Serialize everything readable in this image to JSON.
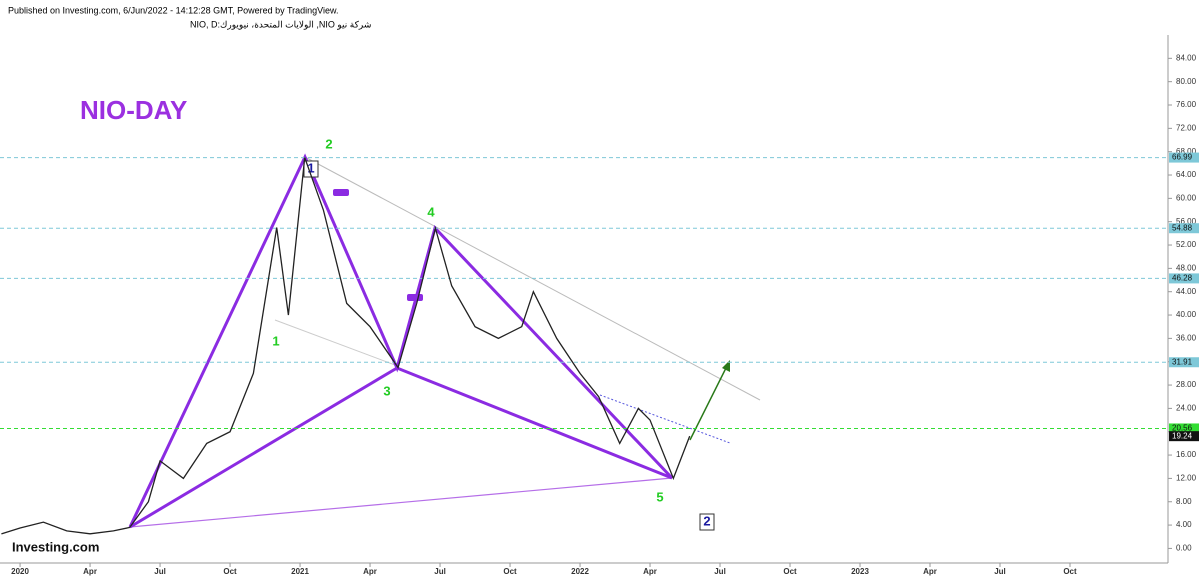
{
  "header": {
    "published": "Published on Investing.com, 6/Jun/2022 - 14:12:28 GMT, Powered by TradingView.",
    "symbol": "شركة نيو NIO, الولايات المتحدة، نيويورك:NIO, D"
  },
  "chart_data": {
    "type": "line",
    "title": "NIO-DAY",
    "watermark": "Investing.com",
    "xlim": [
      -0.86,
      49.2
    ],
    "xticks": [
      {
        "value": 0,
        "label": "2020"
      },
      {
        "value": 3,
        "label": "Apr"
      },
      {
        "value": 6,
        "label": "Jul"
      },
      {
        "value": 9,
        "label": "Oct"
      },
      {
        "value": 12,
        "label": "2021"
      },
      {
        "value": 15,
        "label": "Apr"
      },
      {
        "value": 18,
        "label": "Jul"
      },
      {
        "value": 21,
        "label": "Oct"
      },
      {
        "value": 24,
        "label": "2022"
      },
      {
        "value": 27,
        "label": "Apr"
      },
      {
        "value": 30,
        "label": "Jul"
      },
      {
        "value": 33,
        "label": "Oct"
      },
      {
        "value": 36,
        "label": "2023"
      },
      {
        "value": 39,
        "label": "Apr"
      },
      {
        "value": 42,
        "label": "Jul"
      },
      {
        "value": 45,
        "label": "Oct"
      }
    ],
    "ylim": [
      -2.5,
      88
    ],
    "yticks": [
      {
        "value": 0,
        "label": "0.00"
      },
      {
        "value": 4,
        "label": "4.00"
      },
      {
        "value": 8,
        "label": "8.00"
      },
      {
        "value": 12,
        "label": "12.00"
      },
      {
        "value": 16,
        "label": "16.00"
      },
      {
        "value": 20,
        "label": "20.00"
      },
      {
        "value": 24,
        "label": "24.00"
      },
      {
        "value": 28,
        "label": "28.00"
      },
      {
        "value": 32,
        "label": "32.00"
      },
      {
        "value": 36,
        "label": "36.00"
      },
      {
        "value": 40,
        "label": "40.00"
      },
      {
        "value": 44,
        "label": "44.00"
      },
      {
        "value": 48,
        "label": "48.00"
      },
      {
        "value": 52,
        "label": "52.00"
      },
      {
        "value": 56,
        "label": "56.00"
      },
      {
        "value": 60,
        "label": "60.00"
      },
      {
        "value": 64,
        "label": "64.00"
      },
      {
        "value": 68,
        "label": "68.00"
      },
      {
        "value": 72,
        "label": "72.00"
      },
      {
        "value": 76,
        "label": "76.00"
      },
      {
        "value": 80,
        "label": "80.00"
      },
      {
        "value": 84,
        "label": "84.00"
      }
    ],
    "series": [
      {
        "name": "NIO",
        "color": "#222222",
        "x": [
          -0.8,
          0,
          1,
          2,
          3,
          4,
          4.7,
          5.5,
          6,
          7,
          8,
          9,
          10,
          10.6,
          11,
          11.5,
          12.2,
          13,
          14,
          15,
          16.2,
          17,
          17.8,
          18.5,
          19.5,
          20.5,
          21.5,
          22,
          23,
          24,
          24.8,
          25.7,
          26.5,
          27,
          28,
          28.7
        ],
        "values": [
          2.5,
          3.5,
          4.5,
          3,
          2.5,
          3,
          3.6,
          8,
          15,
          12,
          18,
          20,
          30,
          45,
          55,
          40,
          66.99,
          58,
          42,
          38,
          31,
          42,
          54.88,
          45,
          38,
          36,
          38,
          44,
          36,
          30,
          26,
          18,
          24,
          22,
          12,
          19.24
        ]
      }
    ],
    "levels": [
      {
        "value": 66.99,
        "color": "#7ec8d8"
      },
      {
        "value": 54.88,
        "color": "#7ec8d8"
      },
      {
        "value": 46.28,
        "color": "#7ec8d8"
      },
      {
        "value": 31.91,
        "color": "#7ec8d8"
      },
      {
        "value": 20.56,
        "color": "#33dd33"
      }
    ],
    "last_price": 19.24,
    "annotations": [
      "1",
      "2",
      "3",
      "4",
      "5",
      "1",
      "2"
    ]
  }
}
